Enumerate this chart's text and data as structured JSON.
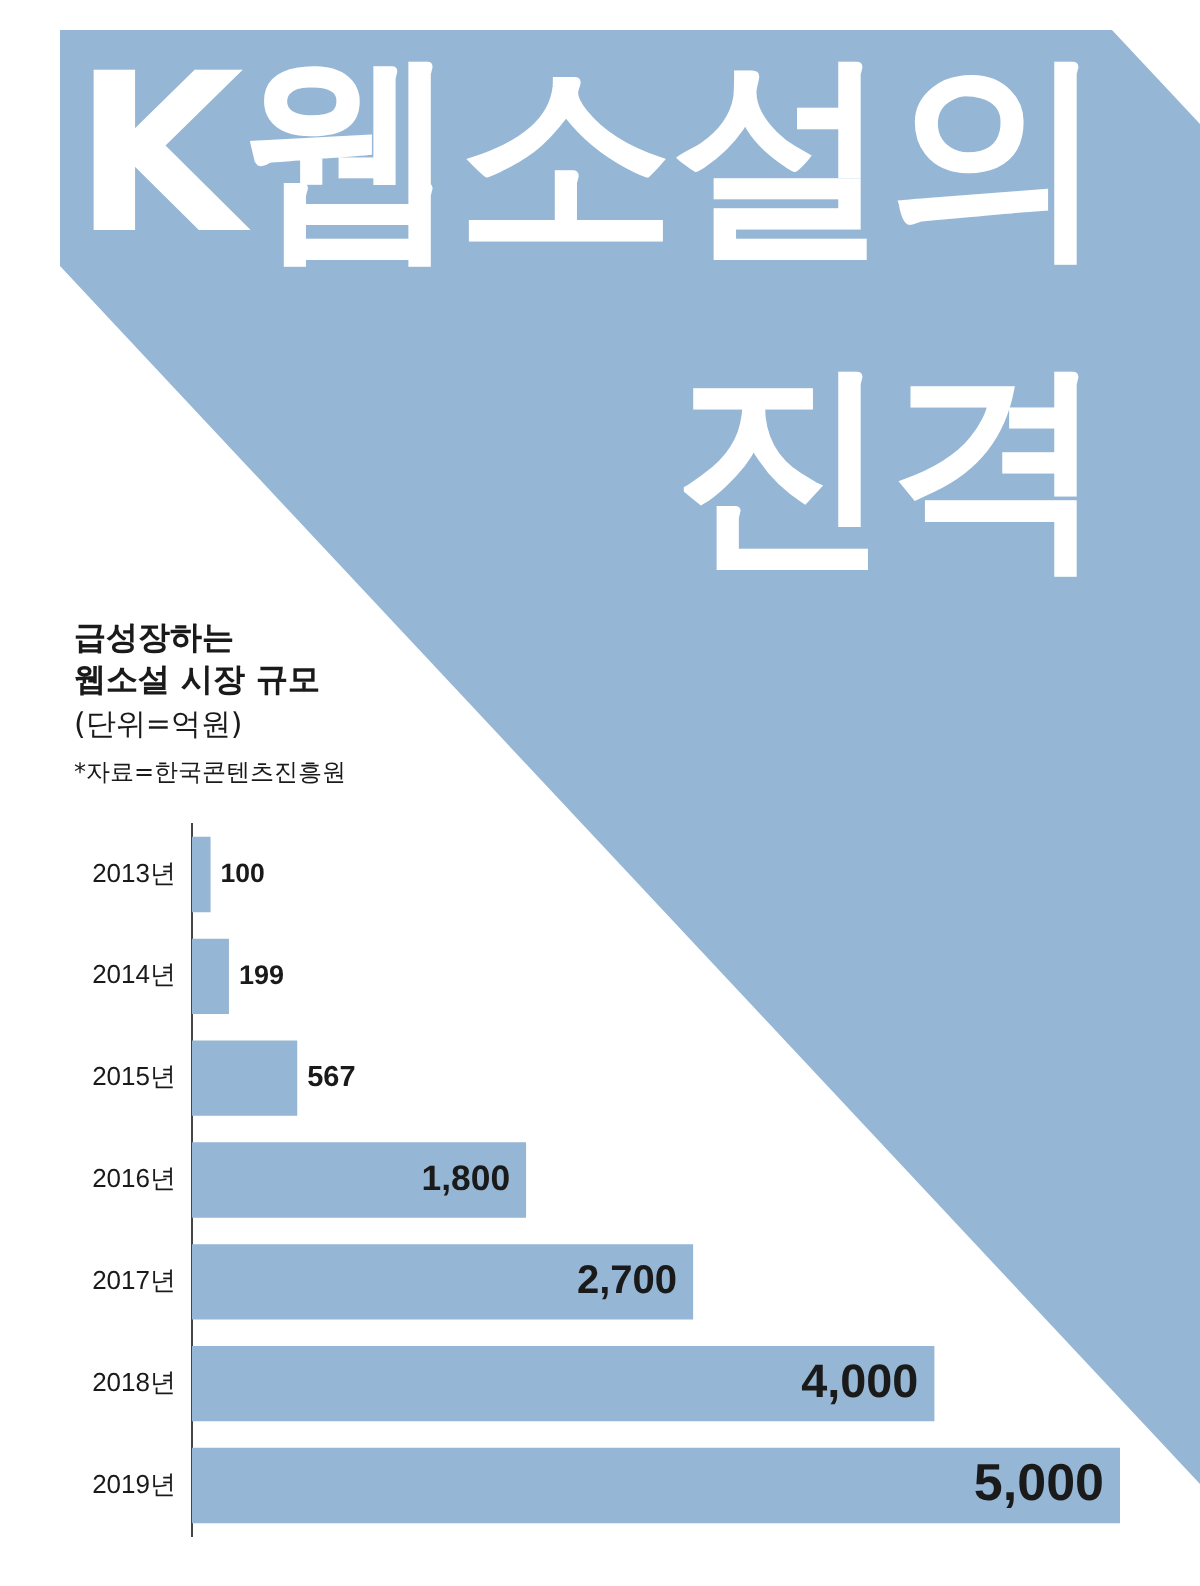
{
  "chart_data": {
    "type": "bar",
    "orientation": "horizontal",
    "title": "K웹소설의\n진격",
    "subtitle": "급성장하는\n웹소설 시장 규모",
    "annotations": [
      "(단위=억원)",
      "*자료=한국콘텐츠진흥원"
    ],
    "categories": [
      "2013년",
      "2014년",
      "2015년",
      "2016년",
      "2017년",
      "2018년",
      "2019년"
    ],
    "values": [
      100,
      199,
      567,
      1800,
      2700,
      4000,
      5000
    ],
    "value_labels": [
      "100",
      "199",
      "567",
      "1,800",
      "2,700",
      "4,000",
      "5,000"
    ],
    "color": "#95b6d4"
  }
}
